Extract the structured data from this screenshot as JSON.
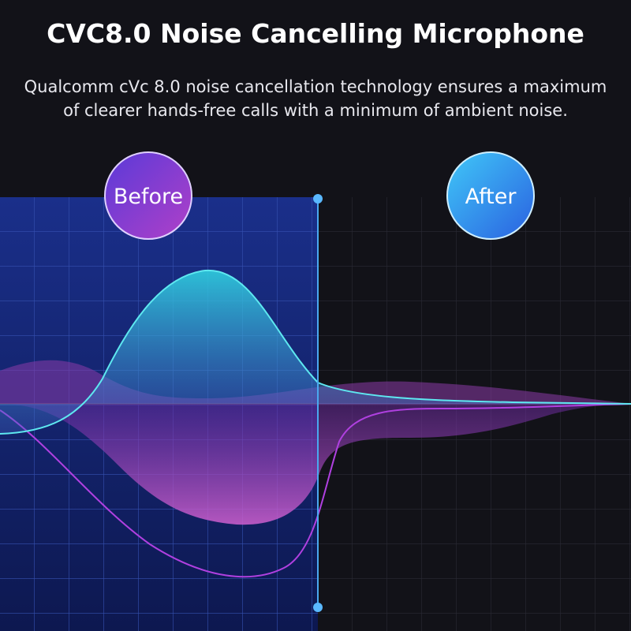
{
  "header": {
    "title": "CVC8.0 Noise Cancelling Microphone",
    "subtitle_lines": [
      "Qualcomm cVc 8.0 noise cancellation technology ensures a maximum",
      "of clearer hands-free calls with a minimum of ambient noise."
    ]
  },
  "labels": {
    "before": "Before",
    "after": "After"
  }
}
